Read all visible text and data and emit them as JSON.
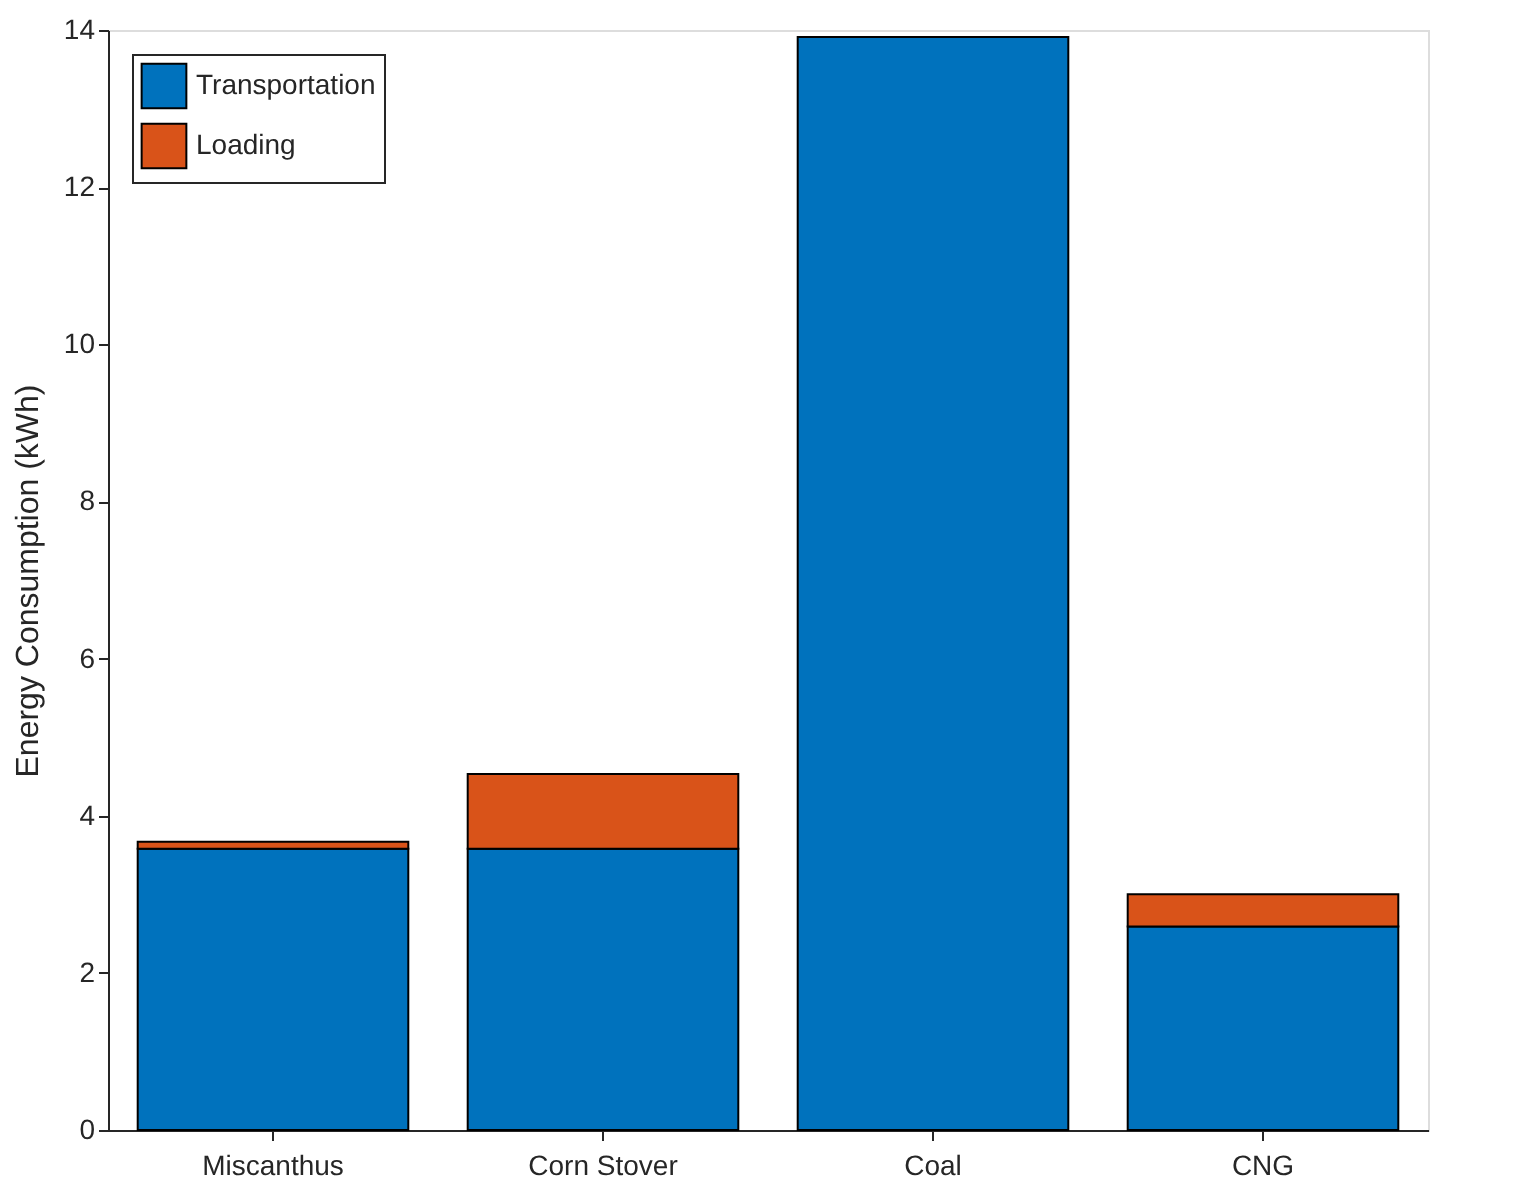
{
  "chart_data": {
    "type": "bar",
    "stacked": true,
    "ylabel": "Energy Consumption (kWh)",
    "categories": [
      "Miscanthus",
      "Corn Stover",
      "Coal",
      "CNG"
    ],
    "series": [
      {
        "name": "Transportation",
        "color": "#0072bd",
        "values": [
          3.58,
          3.58,
          13.91,
          2.59
        ]
      },
      {
        "name": "Loading",
        "color": "#d95319",
        "values": [
          0.09,
          0.95,
          null,
          0.41
        ]
      }
    ],
    "ylim": [
      0,
      14
    ],
    "yticks": [
      0,
      2,
      4,
      6,
      8,
      10,
      12,
      14
    ],
    "grid": false,
    "legend": "top left"
  }
}
